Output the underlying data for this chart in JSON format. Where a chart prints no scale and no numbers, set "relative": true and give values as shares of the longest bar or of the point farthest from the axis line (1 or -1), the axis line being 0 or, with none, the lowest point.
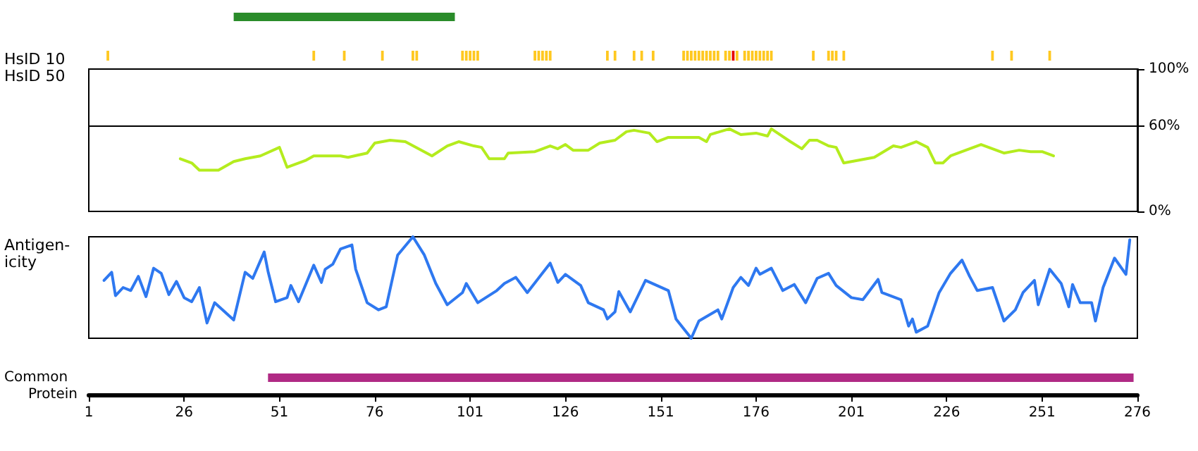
{
  "chart_data": [
    {
      "type": "bar",
      "orientation": "horizontal",
      "categories": [
        null
      ],
      "base": [
        39
      ],
      "values": [
        58
      ],
      "color": "#2a8c2a",
      "xlim": [
        1,
        276
      ],
      "tick_labels": false
    },
    {
      "type": "bar",
      "ylabel": "HsID 10",
      "relative": true,
      "x": [
        6,
        60,
        68,
        78,
        86,
        87,
        99,
        100,
        101,
        102,
        103,
        118,
        119,
        120,
        121,
        122,
        137,
        139,
        144,
        146,
        149,
        157,
        158,
        159,
        160,
        161,
        162,
        163,
        164,
        165,
        166,
        168,
        169,
        170,
        171,
        173,
        174,
        175,
        176,
        177,
        178,
        179,
        180,
        191,
        195,
        196,
        197,
        199,
        238,
        243,
        253
      ],
      "values": [
        1,
        1,
        1,
        1,
        1,
        1,
        1,
        1,
        1,
        1,
        1,
        1,
        1,
        1,
        1,
        1,
        1,
        1,
        1,
        1,
        1,
        1,
        1,
        1,
        1,
        1,
        1,
        1,
        1,
        1,
        1,
        1,
        1,
        1,
        1,
        1,
        1,
        1,
        1,
        1,
        1,
        1,
        1,
        1,
        1,
        1,
        1,
        1,
        1,
        1,
        1
      ],
      "colors": [
        "#ffc820",
        "#ffc820",
        "#ffc820",
        "#ffc820",
        "#ffc820",
        "#ffc820",
        "#ffc820",
        "#ffc820",
        "#ffc820",
        "#ffc820",
        "#ffc820",
        "#ffc820",
        "#ffc820",
        "#ffc820",
        "#ffc820",
        "#ffc820",
        "#ffc820",
        "#ffc820",
        "#ffc820",
        "#ffc820",
        "#ffc820",
        "#ffc820",
        "#ffc820",
        "#ffc820",
        "#ffc820",
        "#ffc820",
        "#ffc820",
        "#ffc820",
        "#ffc820",
        "#ffc820",
        "#ffc820",
        "#ffc820",
        "#ffc820",
        "#e60000",
        "#ffc820",
        "#ffc820",
        "#ffc820",
        "#ffc820",
        "#ffc820",
        "#ffc820",
        "#ffc820",
        "#ffc820",
        "#ffc820",
        "#ffc820",
        "#ffc820",
        "#ffc820",
        "#ffc820",
        "#ffc820",
        "#ffc820",
        "#ffc820",
        "#ffc820"
      ],
      "xlim": [
        1,
        276
      ],
      "tick_labels": false
    },
    {
      "type": "line",
      "ylabel": "HsID 50",
      "color": "#b4ec1e",
      "xlim": [
        1,
        276
      ],
      "ylim": [
        0,
        100
      ],
      "yticks": [
        {
          "value": 0,
          "label": "0%"
        },
        {
          "value": 60,
          "label": "60%"
        },
        {
          "value": 100,
          "label": "100%"
        }
      ],
      "tick_labels": "y",
      "ref_lines": [
        {
          "axis": "y",
          "value": 60
        }
      ],
      "x": [
        25,
        28,
        30,
        35,
        39,
        42,
        46,
        51,
        53,
        58,
        60,
        67,
        69,
        74,
        76,
        80,
        84,
        91,
        95,
        98,
        102,
        104,
        106,
        110,
        111,
        118,
        122,
        124,
        126,
        128,
        132,
        135,
        139,
        142,
        144,
        148,
        150,
        153,
        161,
        163,
        164,
        169,
        172,
        176,
        179,
        180,
        185,
        188,
        190,
        192,
        195,
        197,
        199,
        201,
        207,
        212,
        214,
        218,
        221,
        223,
        225,
        227,
        231,
        235,
        237,
        241,
        245,
        248,
        251,
        254
      ],
      "values": [
        37,
        34,
        29,
        29,
        35,
        37,
        39,
        45,
        31,
        36,
        39,
        39,
        38,
        41,
        48,
        50,
        49,
        39,
        46,
        49,
        46,
        45,
        37,
        37,
        41,
        42,
        46,
        44,
        47,
        43,
        43,
        48,
        50,
        56,
        57,
        55,
        49,
        52,
        52,
        49,
        54,
        58,
        54,
        55,
        53,
        58,
        49,
        44,
        50,
        50,
        46,
        45,
        34,
        35,
        38,
        46,
        45,
        49,
        45,
        34,
        34,
        39,
        43,
        47,
        45,
        41,
        43,
        42,
        42,
        39
      ]
    },
    {
      "type": "line",
      "ylabel": "Antigen-icity",
      "relative": true,
      "color": "#2e78f0",
      "xlim": [
        1,
        276
      ],
      "tick_labels": false,
      "x": [
        5,
        7,
        8,
        10,
        12,
        14,
        16,
        18,
        20,
        22,
        24,
        26,
        28,
        30,
        32,
        34,
        39,
        42,
        44,
        47,
        48,
        50,
        53,
        54,
        56,
        60,
        62,
        63,
        65,
        67,
        70,
        71,
        74,
        77,
        79,
        82,
        86,
        89,
        92,
        95,
        99,
        100,
        103,
        108,
        110,
        113,
        116,
        122,
        124,
        126,
        130,
        132,
        136,
        137,
        139,
        140,
        143,
        147,
        153,
        155,
        159,
        161,
        166,
        167,
        170,
        172,
        174,
        176,
        177,
        180,
        183,
        186,
        189,
        192,
        195,
        197,
        201,
        204,
        208,
        209,
        214,
        216,
        217,
        218,
        221,
        224,
        227,
        230,
        232,
        234,
        238,
        241,
        244,
        246,
        249,
        250,
        253,
        256,
        258,
        259,
        261,
        264,
        265,
        267,
        270,
        273,
        274
      ],
      "values": [
        0.57,
        0.65,
        0.42,
        0.5,
        0.47,
        0.61,
        0.41,
        0.69,
        0.64,
        0.43,
        0.56,
        0.4,
        0.36,
        0.5,
        0.15,
        0.35,
        0.18,
        0.65,
        0.59,
        0.85,
        0.66,
        0.36,
        0.4,
        0.52,
        0.36,
        0.72,
        0.55,
        0.68,
        0.73,
        0.88,
        0.92,
        0.68,
        0.35,
        0.28,
        0.31,
        0.82,
        1,
        0.82,
        0.54,
        0.33,
        0.45,
        0.54,
        0.35,
        0.47,
        0.54,
        0.6,
        0.45,
        0.74,
        0.55,
        0.63,
        0.52,
        0.35,
        0.28,
        0.19,
        0.26,
        0.46,
        0.26,
        0.57,
        0.47,
        0.19,
        0,
        0.17,
        0.28,
        0.19,
        0.5,
        0.6,
        0.52,
        0.69,
        0.63,
        0.69,
        0.47,
        0.53,
        0.35,
        0.59,
        0.64,
        0.52,
        0.4,
        0.38,
        0.58,
        0.45,
        0.38,
        0.12,
        0.19,
        0.06,
        0.12,
        0.45,
        0.64,
        0.77,
        0.61,
        0.47,
        0.5,
        0.17,
        0.28,
        0.45,
        0.57,
        0.33,
        0.68,
        0.54,
        0.31,
        0.53,
        0.35,
        0.35,
        0.17,
        0.5,
        0.79,
        0.63,
        0.97
      ]
    },
    {
      "type": "bar",
      "orientation": "horizontal",
      "categories": [
        "Common"
      ],
      "base": [
        48
      ],
      "values": [
        227
      ],
      "color": "#b02a84",
      "xlabel": "Protein",
      "xlim": [
        1,
        276
      ],
      "xticks": [
        1,
        26,
        51,
        76,
        101,
        126,
        151,
        176,
        201,
        226,
        251,
        276
      ]
    }
  ]
}
